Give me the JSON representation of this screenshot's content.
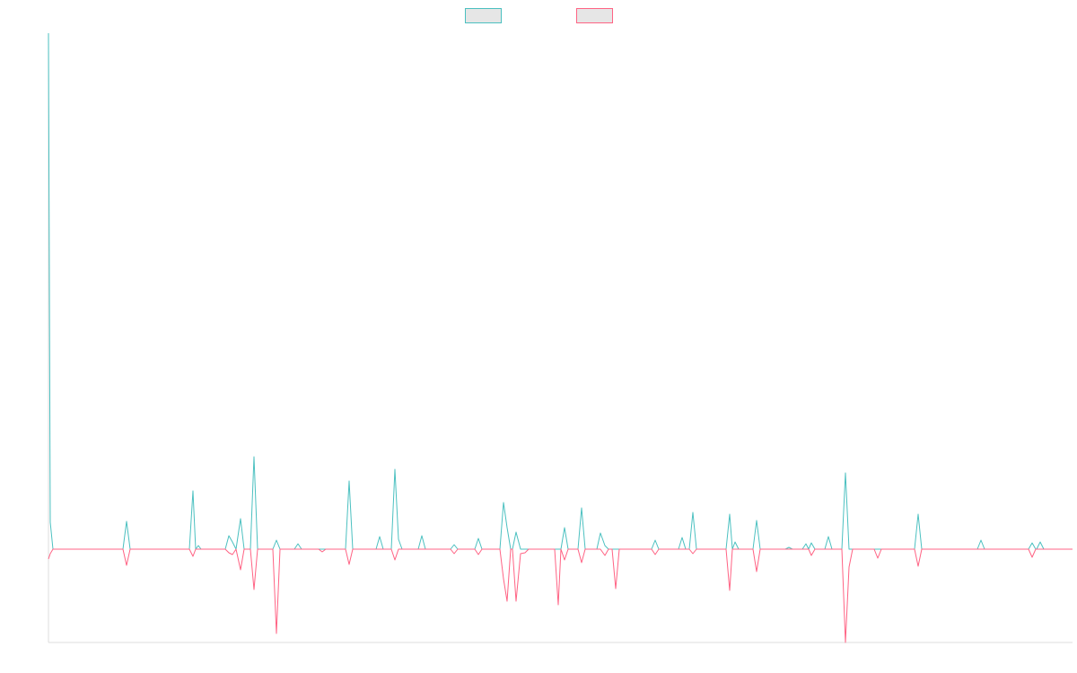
{
  "chart_data": {
    "type": "line",
    "legend": "top",
    "xlim": [
      0,
      1141
    ],
    "ylim": [
      -104,
      575
    ],
    "x": [
      0,
      2,
      5,
      83,
      87,
      91,
      157,
      161,
      164,
      167,
      170,
      197,
      201,
      205,
      209,
      214,
      218,
      225,
      229,
      233,
      250,
      254,
      258,
      274,
      278,
      282,
      301,
      305,
      309,
      331,
      335,
      339,
      365,
      369,
      373,
      382,
      386,
      390,
      394,
      412,
      416,
      420,
      448,
      452,
      456,
      475,
      479,
      483,
      503,
      507,
      511,
      515,
      517,
      521,
      526,
      531,
      535,
      564,
      568,
      571,
      575,
      579,
      590,
      594,
      598,
      611,
      615,
      620,
      624,
      628,
      632,
      636,
      672,
      676,
      680,
      702,
      706,
      710,
      714,
      718,
      722,
      755,
      759,
      762,
      765,
      769,
      785,
      789,
      793,
      821,
      825,
      829,
      840,
      844,
      847,
      850,
      854,
      865,
      869,
      873,
      884,
      888,
      892,
      896,
      920,
      924,
      928,
      965,
      969,
      973,
      1035,
      1039,
      1043,
      1092,
      1096,
      1100,
      1101,
      1105,
      1109,
      1141
    ],
    "series": [
      {
        "color": "#4bc0c0",
        "values": [
          575,
          30,
          0,
          0,
          31,
          0,
          0,
          65,
          0,
          4,
          0,
          0,
          15,
          8,
          0,
          34,
          0,
          0,
          103,
          0,
          0,
          10,
          0,
          0,
          6,
          0,
          0,
          0,
          0,
          0,
          76,
          0,
          0,
          14,
          0,
          0,
          89,
          11,
          0,
          0,
          15,
          0,
          0,
          5,
          0,
          0,
          12,
          0,
          0,
          52,
          24,
          0,
          0,
          19,
          0,
          0,
          0,
          0,
          0,
          0,
          24,
          0,
          0,
          46,
          0,
          0,
          18,
          4,
          0,
          0,
          0,
          0,
          0,
          10,
          0,
          0,
          13,
          0,
          0,
          41,
          0,
          0,
          39,
          0,
          8,
          0,
          0,
          32,
          0,
          0,
          2,
          0,
          0,
          6,
          0,
          7,
          0,
          0,
          14,
          0,
          0,
          85,
          0,
          0,
          0,
          0,
          0,
          0,
          39,
          0,
          0,
          10,
          0,
          0,
          7,
          0,
          0,
          8,
          0,
          0
        ]
      },
      {
        "color": "#ff6384",
        "values": [
          -11,
          -5,
          0,
          0,
          -18,
          0,
          0,
          -8,
          0,
          0,
          0,
          0,
          -4,
          -6,
          0,
          -23,
          0,
          0,
          -45,
          0,
          0,
          -94,
          0,
          0,
          0,
          0,
          0,
          -3,
          0,
          0,
          -17,
          0,
          0,
          0,
          0,
          0,
          -12,
          0,
          0,
          0,
          0,
          0,
          0,
          -5,
          0,
          0,
          -6,
          0,
          0,
          -33,
          -58,
          0,
          0,
          -58,
          -5,
          -4,
          0,
          0,
          -62,
          0,
          -12,
          0,
          0,
          -15,
          0,
          0,
          0,
          -7,
          0,
          0,
          -44,
          0,
          0,
          -6,
          0,
          0,
          0,
          0,
          0,
          -5,
          0,
          0,
          -46,
          0,
          0,
          0,
          0,
          -25,
          0,
          0,
          0,
          0,
          0,
          0,
          0,
          -7,
          0,
          0,
          0,
          0,
          0,
          -104,
          -20,
          0,
          0,
          -10,
          0,
          0,
          -19,
          0,
          0,
          0,
          0,
          0,
          -9,
          0,
          0,
          0,
          0,
          0
        ]
      }
    ]
  }
}
